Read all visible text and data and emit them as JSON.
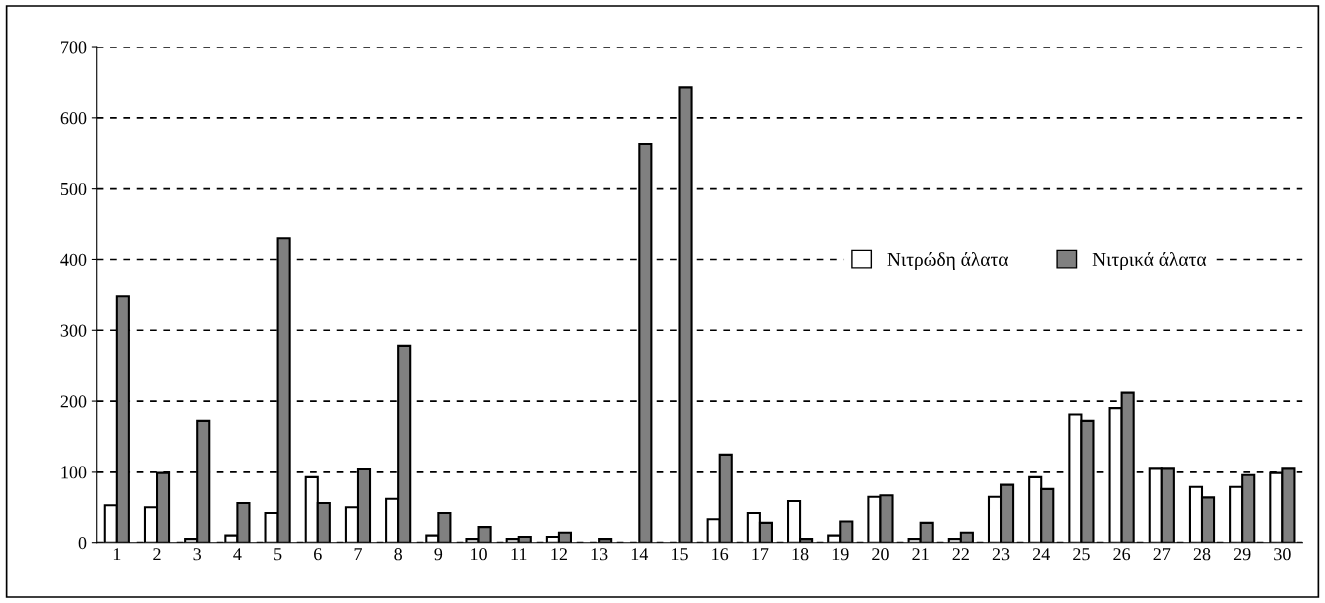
{
  "chart_data": {
    "type": "bar",
    "categories": [
      "1",
      "2",
      "3",
      "4",
      "5",
      "6",
      "7",
      "8",
      "9",
      "10",
      "11",
      "12",
      "13",
      "14",
      "15",
      "16",
      "17",
      "18",
      "19",
      "20",
      "21",
      "22",
      "23",
      "24",
      "25",
      "26",
      "27",
      "28",
      "29",
      "30"
    ],
    "series": [
      {
        "name": "Νιτρώδη άλατα",
        "color": "#ffffff",
        "values": [
          53,
          50,
          5,
          10,
          42,
          93,
          50,
          62,
          10,
          5,
          5,
          8,
          0,
          0,
          0,
          33,
          42,
          59,
          10,
          65,
          5,
          5,
          65,
          93,
          181,
          190,
          105,
          79,
          79,
          99
        ]
      },
      {
        "name": "Νιτρικά άλατα",
        "color": "#808080",
        "values": [
          348,
          99,
          172,
          56,
          430,
          56,
          104,
          278,
          42,
          22,
          8,
          14,
          5,
          563,
          643,
          124,
          28,
          5,
          30,
          67,
          28,
          14,
          82,
          76,
          172,
          212,
          105,
          64,
          96,
          105
        ]
      }
    ],
    "ylim": [
      0,
      700
    ],
    "yticks": [
      0,
      100,
      200,
      300,
      400,
      500,
      600,
      700
    ],
    "grid": "y",
    "legend": "right"
  }
}
